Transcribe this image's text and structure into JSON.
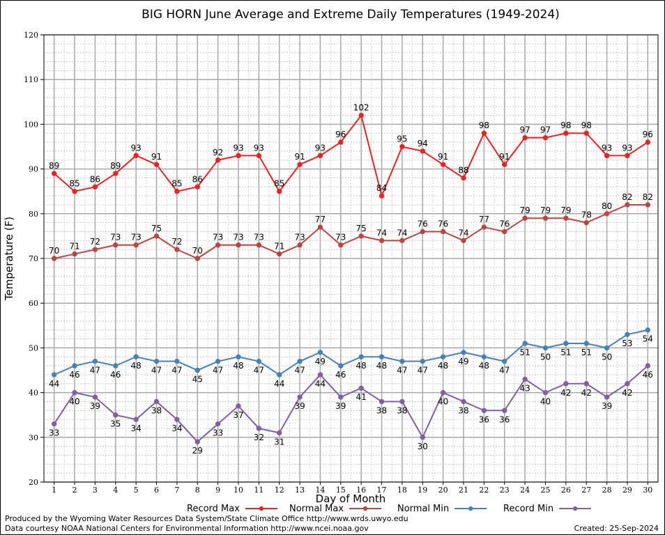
{
  "chart_data": {
    "type": "line",
    "title": "BIG HORN June Average and Extreme Daily Temperatures (1949-2024)",
    "xlabel": "Day of Month",
    "ylabel": "Temperature (F)",
    "x": [
      1,
      2,
      3,
      4,
      5,
      6,
      7,
      8,
      9,
      10,
      11,
      12,
      13,
      14,
      15,
      16,
      17,
      18,
      19,
      20,
      21,
      22,
      23,
      24,
      25,
      26,
      27,
      28,
      29,
      30
    ],
    "xlim": [
      0.5,
      30.5
    ],
    "ylim": [
      20,
      120
    ],
    "yticks": [
      20,
      30,
      40,
      50,
      60,
      70,
      80,
      90,
      100,
      110,
      120
    ],
    "grid": true,
    "legend_position": "bottom",
    "series": [
      {
        "name": "Record Max",
        "color": "#ee2222",
        "label_pos": "above",
        "values": [
          89,
          85,
          86,
          89,
          93,
          91,
          85,
          86,
          92,
          93,
          93,
          85,
          91,
          93,
          96,
          102,
          84,
          95,
          94,
          91,
          88,
          98,
          91,
          97,
          97,
          98,
          98,
          93,
          93,
          96
        ]
      },
      {
        "name": "Normal Max",
        "color": "#bb4444",
        "label_pos": "above",
        "values": [
          70,
          71,
          72,
          73,
          73,
          75,
          72,
          70,
          73,
          73,
          73,
          71,
          73,
          77,
          73,
          75,
          74,
          74,
          76,
          76,
          74,
          77,
          76,
          79,
          79,
          79,
          78,
          80,
          82,
          82
        ]
      },
      {
        "name": "Normal Min",
        "color": "#4682b4",
        "label_pos": "below",
        "values": [
          44,
          46,
          47,
          46,
          48,
          47,
          47,
          45,
          47,
          48,
          47,
          44,
          47,
          49,
          46,
          48,
          48,
          47,
          47,
          48,
          49,
          48,
          47,
          51,
          50,
          51,
          51,
          50,
          53,
          54
        ]
      },
      {
        "name": "Record Min",
        "color": "#8060a0",
        "label_pos": "below",
        "values": [
          33,
          40,
          39,
          35,
          34,
          38,
          34,
          29,
          33,
          37,
          32,
          31,
          39,
          44,
          39,
          41,
          38,
          38,
          30,
          40,
          38,
          36,
          36,
          43,
          40,
          42,
          42,
          39,
          42,
          46
        ]
      }
    ]
  },
  "footer": {
    "credit_line1": "Produced by the Wyoming Water Resources Data System/State Climate Office http://www.wrds.uwyo.edu",
    "credit_line2": "Data courtesy NOAA National Centers for Environmental Information http://www.ncei.noaa.gov",
    "created": "Created:  25-Sep-2024"
  }
}
